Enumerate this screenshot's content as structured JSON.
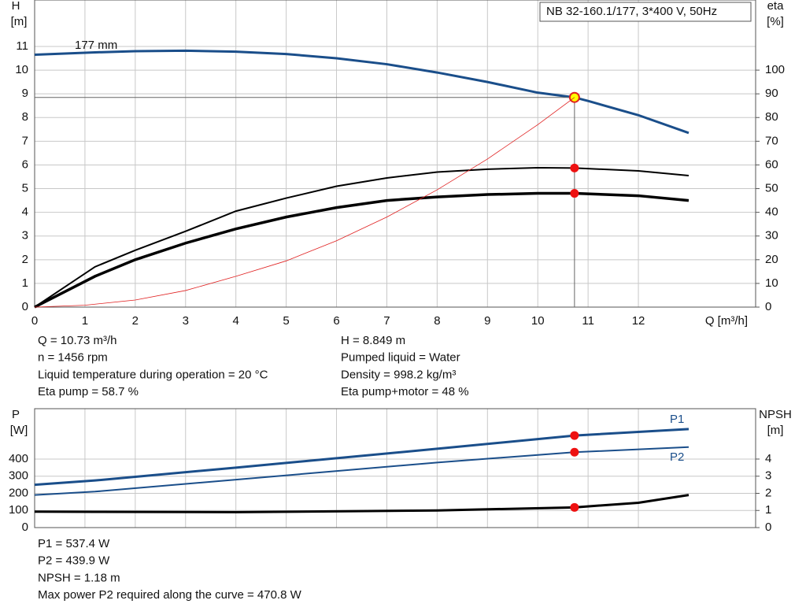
{
  "chart_data": [
    {
      "type": "line",
      "title": "NB 32-160.1/177, 3*400 V, 50Hz",
      "ylabel": "H",
      "yunit": "[m]",
      "y2label": "eta",
      "y2unit": "[%]",
      "xlabel": "Q [m³/h]",
      "xlim": [
        0,
        14.33
      ],
      "xticks": [
        0,
        1,
        2,
        3,
        4,
        5,
        6,
        7,
        8,
        9,
        10,
        11,
        12
      ],
      "ylim": [
        0,
        12.96
      ],
      "yticks": [
        0,
        1,
        2,
        3,
        4,
        5,
        6,
        7,
        8,
        9,
        10,
        11
      ],
      "y2lim": [
        0,
        129.6
      ],
      "y2ticks": [
        0,
        10,
        20,
        30,
        40,
        50,
        60,
        70,
        80,
        90,
        100
      ],
      "grid": true,
      "duty_point_x": 10.73,
      "series": [
        {
          "name": "177 mm",
          "color": "#1a4e8a",
          "x": [
            0,
            1.2,
            2,
            3,
            4,
            5,
            6,
            7,
            8,
            9,
            10,
            10.73,
            11,
            12,
            13
          ],
          "values": [
            10.65,
            10.75,
            10.8,
            10.82,
            10.78,
            10.68,
            10.5,
            10.25,
            9.9,
            9.5,
            9.05,
            8.849,
            8.7,
            8.1,
            7.35
          ]
        },
        {
          "color": "#000000",
          "axis": "y2",
          "x": [
            0,
            1.2,
            2,
            3,
            4,
            5,
            6,
            7,
            8,
            9,
            10,
            10.73,
            12,
            13
          ],
          "values": [
            0,
            17,
            24,
            32,
            40.5,
            46,
            51,
            54.5,
            57,
            58.2,
            58.8,
            58.7,
            57.5,
            55.5
          ]
        },
        {
          "color": "#000000",
          "axis": "y2",
          "x": [
            0,
            1.2,
            2,
            3,
            4,
            5,
            6,
            7,
            8,
            9,
            10,
            10.73,
            12,
            13
          ],
          "values": [
            0,
            13,
            20,
            27,
            33,
            38,
            42,
            45,
            46.5,
            47.5,
            48,
            48,
            47,
            45
          ]
        },
        {
          "color": "#e02020",
          "x": [
            0,
            1,
            2,
            3,
            4,
            5,
            6,
            7,
            8,
            9,
            10,
            10.73
          ],
          "values": [
            0,
            0.08,
            0.3,
            0.7,
            1.3,
            1.95,
            2.8,
            3.8,
            4.95,
            6.25,
            7.7,
            8.849
          ]
        }
      ],
      "info": [
        [
          "Q = 10.73 m³/h",
          "H = 8.849 m"
        ],
        [
          "n = 1456 rpm",
          "Pumped liquid = Water"
        ],
        [
          "Liquid temperature during operation = 20 °C",
          "Density = 998.2 kg/m³"
        ],
        [
          "Eta pump = 58.7 %",
          "Eta pump+motor = 48 %"
        ]
      ]
    },
    {
      "type": "line",
      "ylabel": "P",
      "yunit": "[W]",
      "y2label": "NPSH",
      "y2unit": "[m]",
      "xlim": [
        0,
        14.33
      ],
      "ylim": [
        0,
        694
      ],
      "yticks": [
        0,
        100,
        200,
        300,
        400
      ],
      "y2lim": [
        0,
        6.94
      ],
      "y2ticks": [
        0,
        1,
        2,
        3,
        4
      ],
      "grid": true,
      "duty_point_x": 10.73,
      "series": [
        {
          "name": "P1",
          "color": "#1a4e8a",
          "x": [
            0,
            1.2,
            4,
            8,
            10.73,
            13
          ],
          "values": [
            250,
            275,
            350,
            460,
            537.4,
            575
          ]
        },
        {
          "name": "P2",
          "color": "#1a4e8a",
          "x": [
            0,
            1.2,
            4,
            8,
            10.73,
            13
          ],
          "values": [
            190,
            210,
            280,
            380,
            439.9,
            470
          ]
        },
        {
          "color": "#000000",
          "axis": "y2",
          "x": [
            0,
            1.2,
            4,
            8,
            10.73,
            12,
            13
          ],
          "values": [
            0.93,
            0.92,
            0.9,
            1.0,
            1.18,
            1.45,
            1.9
          ]
        }
      ],
      "info": [
        [
          "P1 = 537.4 W"
        ],
        [
          "P2 = 439.9 W"
        ],
        [
          "NPSH = 1.18 m"
        ],
        [
          "Max power P2 required along the curve = 470.8 W"
        ]
      ]
    }
  ]
}
